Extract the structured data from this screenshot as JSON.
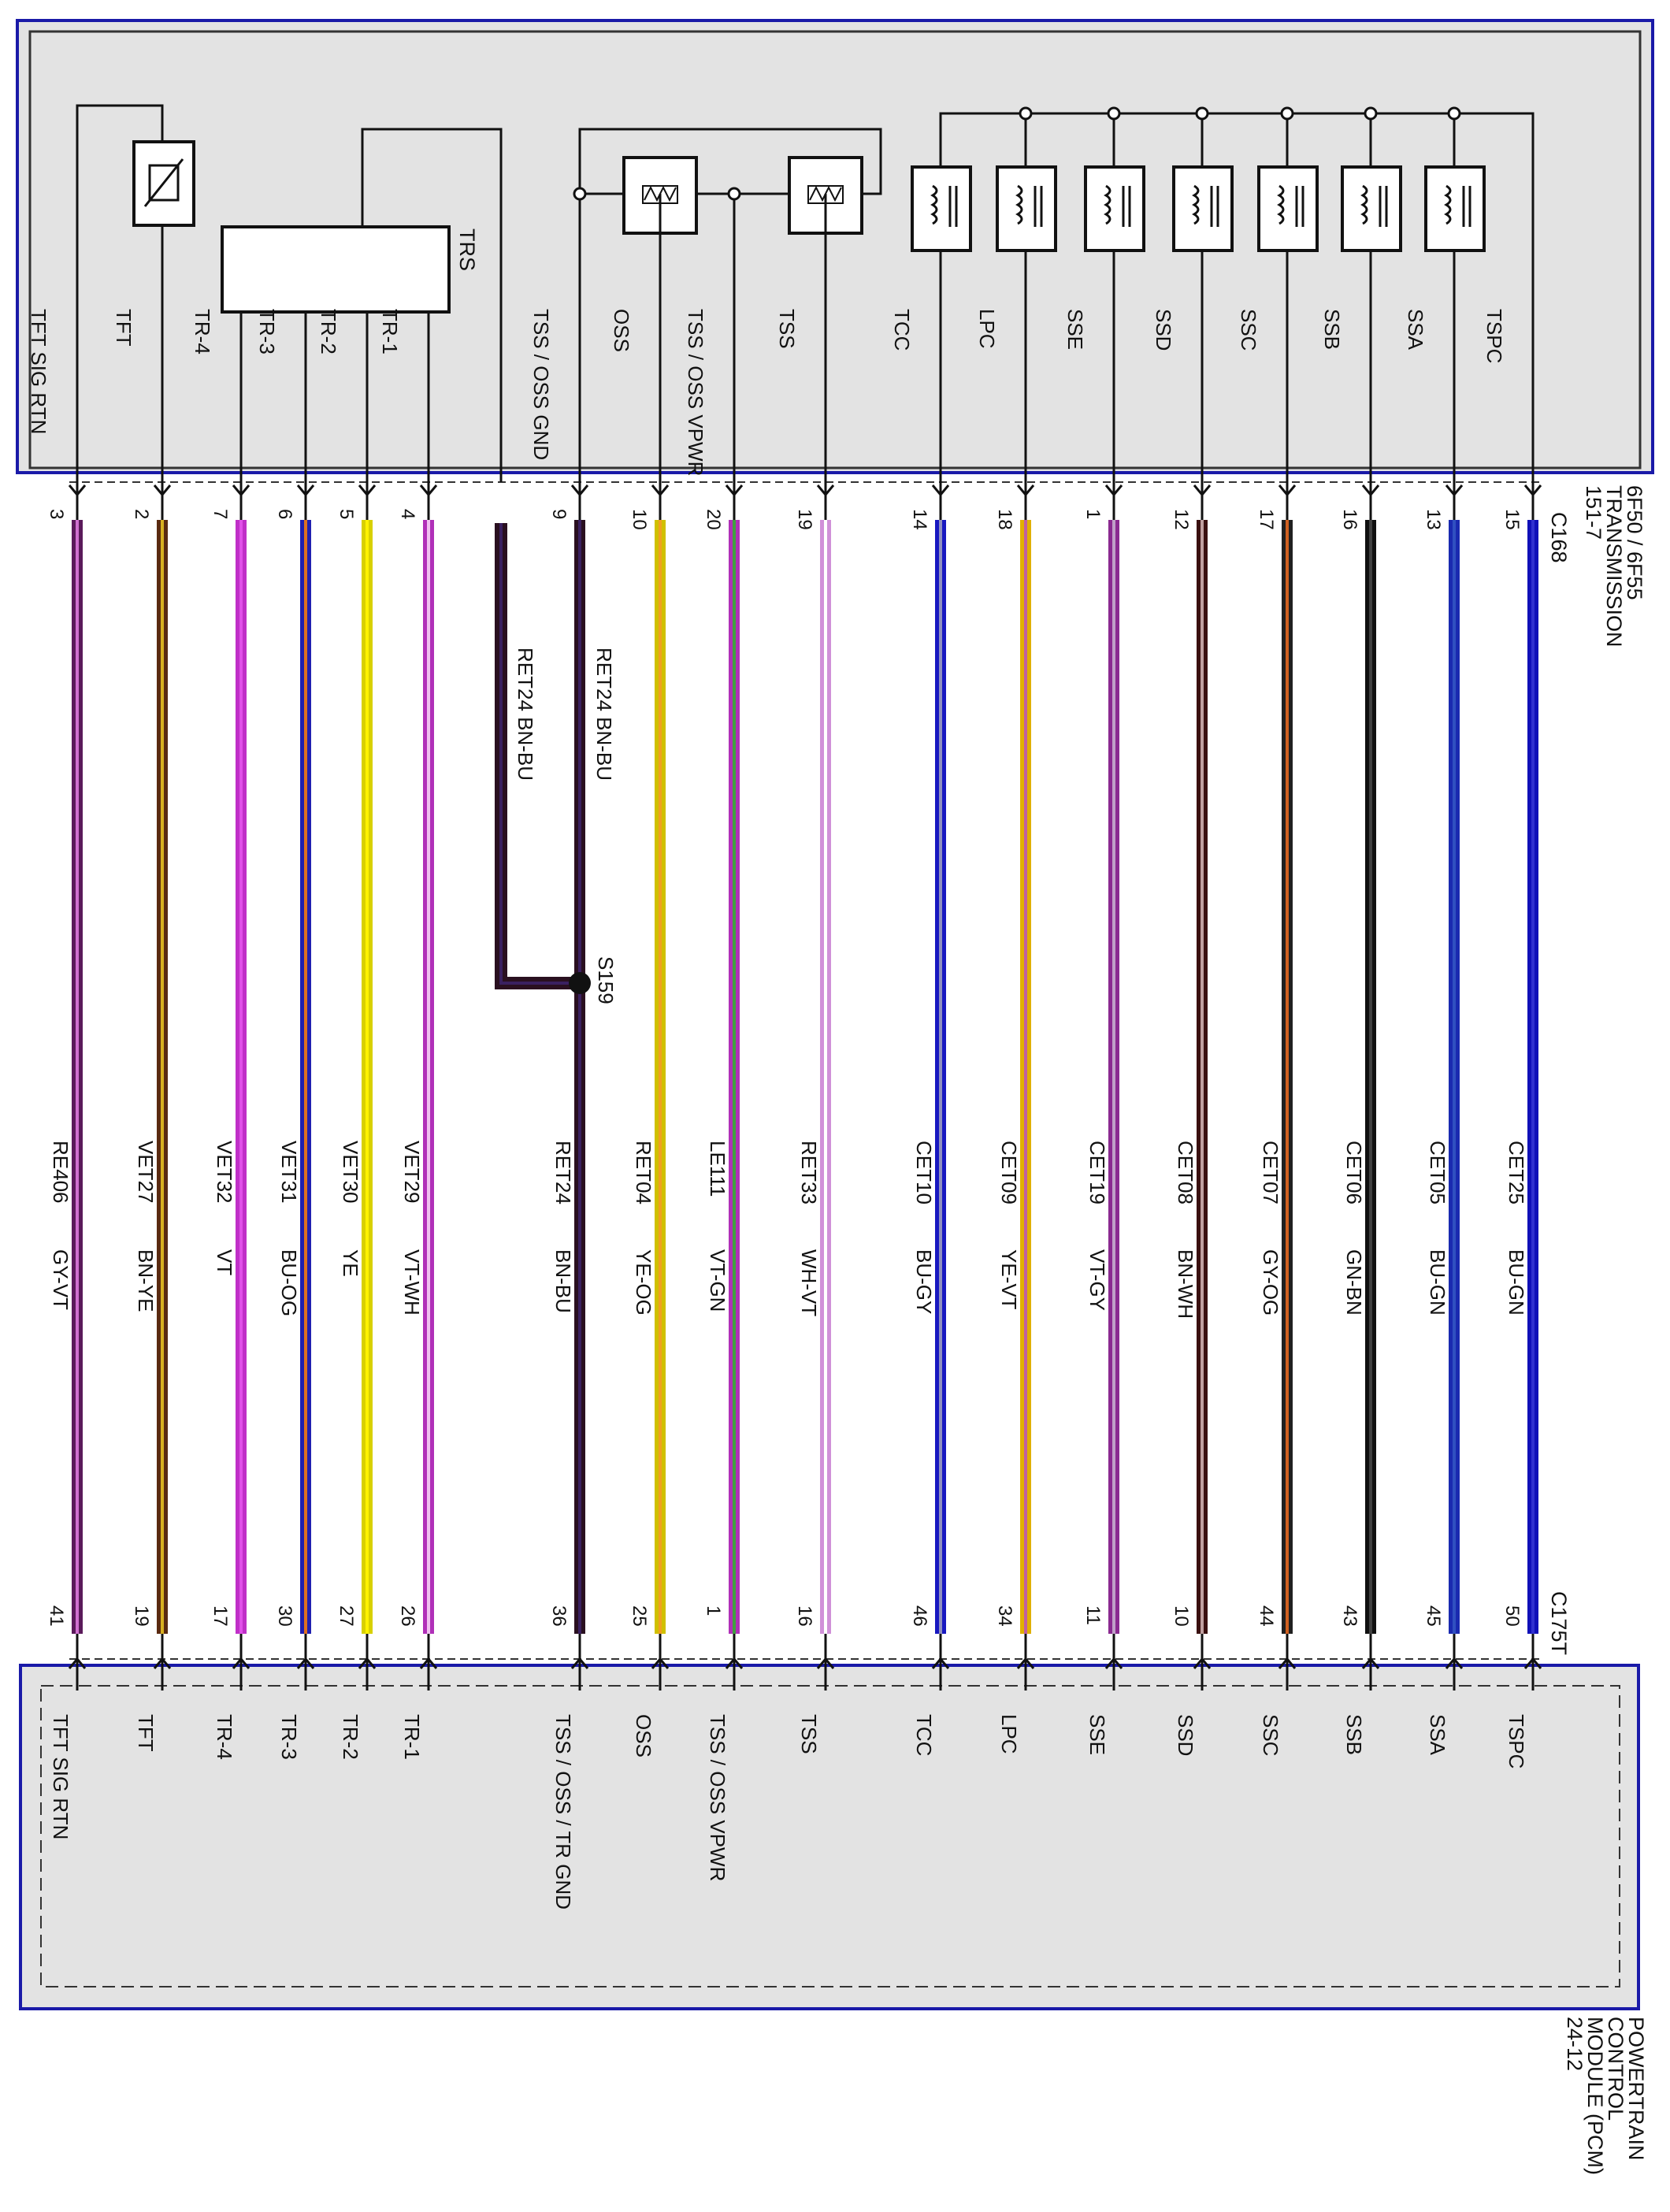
{
  "transmission": {
    "title_lines": [
      "6F50 / 6F55",
      "TRANSMISSION",
      "151-7"
    ],
    "connector": "C168",
    "trs_label": "TRS"
  },
  "pcm": {
    "title_lines": [
      "POWERTRAIN",
      "CONTROL",
      "MODULE (PCM)",
      "24-12"
    ],
    "connector": "C175T"
  },
  "splice": {
    "label": "S159",
    "upper_left": "RET24   BN-BU",
    "upper_right": "RET24   BN-BU"
  },
  "circuits": [
    {
      "top_label": "TFT SIG RTN",
      "top_pin": "3",
      "circuit": "RE406",
      "color_code": "GY-VT",
      "bottom_pin": "41",
      "bottom_label": "TFT SIG RTN",
      "stroke": "#5a1a5a",
      "core": "#d070d0"
    },
    {
      "top_label": "TFT",
      "top_pin": "2",
      "circuit": "VET27",
      "color_code": "BN-YE",
      "bottom_pin": "19",
      "bottom_label": "TFT",
      "stroke": "#5a2a10",
      "core": "#d8b020"
    },
    {
      "top_label": "TR-4",
      "top_pin": "7",
      "circuit": "VET32",
      "color_code": "VT",
      "bottom_pin": "17",
      "bottom_label": "TR-4",
      "stroke": "#c030c8",
      "core": "#e050e8"
    },
    {
      "top_label": "TR-3",
      "top_pin": "6",
      "circuit": "VET31",
      "color_code": "BU-OG",
      "bottom_pin": "30",
      "bottom_label": "TR-3",
      "stroke": "#2020b0",
      "core": "#e07020"
    },
    {
      "top_label": "TR-2",
      "top_pin": "5",
      "circuit": "VET30",
      "color_code": "YE",
      "bottom_pin": "27",
      "bottom_label": "TR-2",
      "stroke": "#d8d000",
      "core": "#fff200"
    },
    {
      "top_label": "TR-1",
      "top_pin": "4",
      "circuit": "VET29",
      "color_code": "VT-WH",
      "bottom_pin": "26",
      "bottom_label": "TR-1",
      "stroke": "#b030b8",
      "core": "#f0c0f0"
    },
    {
      "top_label": "TSS / OSS GND",
      "top_pin": "9",
      "circuit": "RET24",
      "color_code": "BN-BU",
      "bottom_pin": "36",
      "bottom_label": "TSS / OSS / TR GND",
      "stroke": "#2a1020",
      "core": "#3a2060"
    },
    {
      "top_label": "OSS",
      "top_pin": "10",
      "circuit": "RET04",
      "color_code": "YE-OG",
      "bottom_pin": "25",
      "bottom_label": "OSS",
      "stroke": "#d0c000",
      "core": "#f0a020"
    },
    {
      "top_label": "TSS / OSS VPWR",
      "top_pin": "20",
      "circuit": "LE111",
      "color_code": "VT-GN",
      "bottom_pin": "1",
      "bottom_label": "TSS / OSS VPWR",
      "stroke": "#b030b8",
      "core": "#40a040"
    },
    {
      "top_label": "TSS",
      "top_pin": "19",
      "circuit": "RET33",
      "color_code": "WH-VT",
      "bottom_pin": "16",
      "bottom_label": "TSS",
      "stroke": "#d090d8",
      "core": "#ffffff"
    },
    {
      "top_label": "TCC",
      "top_pin": "14",
      "circuit": "CET10",
      "color_code": "BU-GY",
      "bottom_pin": "46",
      "bottom_label": "TCC",
      "stroke": "#1818c0",
      "core": "#9090c0"
    },
    {
      "top_label": "LPC",
      "top_pin": "18",
      "circuit": "CET09",
      "color_code": "YE-VT",
      "bottom_pin": "34",
      "bottom_label": "LPC",
      "stroke": "#e0b000",
      "core": "#c060a0"
    },
    {
      "top_label": "SSE",
      "top_pin": "1",
      "circuit": "CET19",
      "color_code": "VT-GY",
      "bottom_pin": "11",
      "bottom_label": "SSE",
      "stroke": "#8a2a90",
      "core": "#c0a0c8"
    },
    {
      "top_label": "SSD",
      "top_pin": "12",
      "circuit": "CET08",
      "color_code": "BN-WH",
      "bottom_pin": "10",
      "bottom_label": "SSD",
      "stroke": "#3a1010",
      "core": "#c0a0a0"
    },
    {
      "top_label": "SSC",
      "top_pin": "17",
      "circuit": "CET07",
      "color_code": "GY-OG",
      "bottom_pin": "44",
      "bottom_label": "SSC",
      "stroke": "#202020",
      "core": "#d06020"
    },
    {
      "top_label": "SSB",
      "top_pin": "16",
      "circuit": "CET06",
      "color_code": "GN-BN",
      "bottom_pin": "43",
      "bottom_label": "SSB",
      "stroke": "#101010",
      "core": "#404040"
    },
    {
      "top_label": "SSA",
      "top_pin": "13",
      "circuit": "CET05",
      "color_code": "BU-GN",
      "bottom_pin": "45",
      "bottom_label": "SSA",
      "stroke": "#1a2ab0",
      "core": "#3050c0"
    },
    {
      "top_label": "TSPC",
      "top_pin": "15",
      "circuit": "CET25",
      "color_code": "BU-GN",
      "bottom_pin": "50",
      "bottom_label": "TSPC",
      "stroke": "#1010b8",
      "core": "#3030d0"
    }
  ]
}
